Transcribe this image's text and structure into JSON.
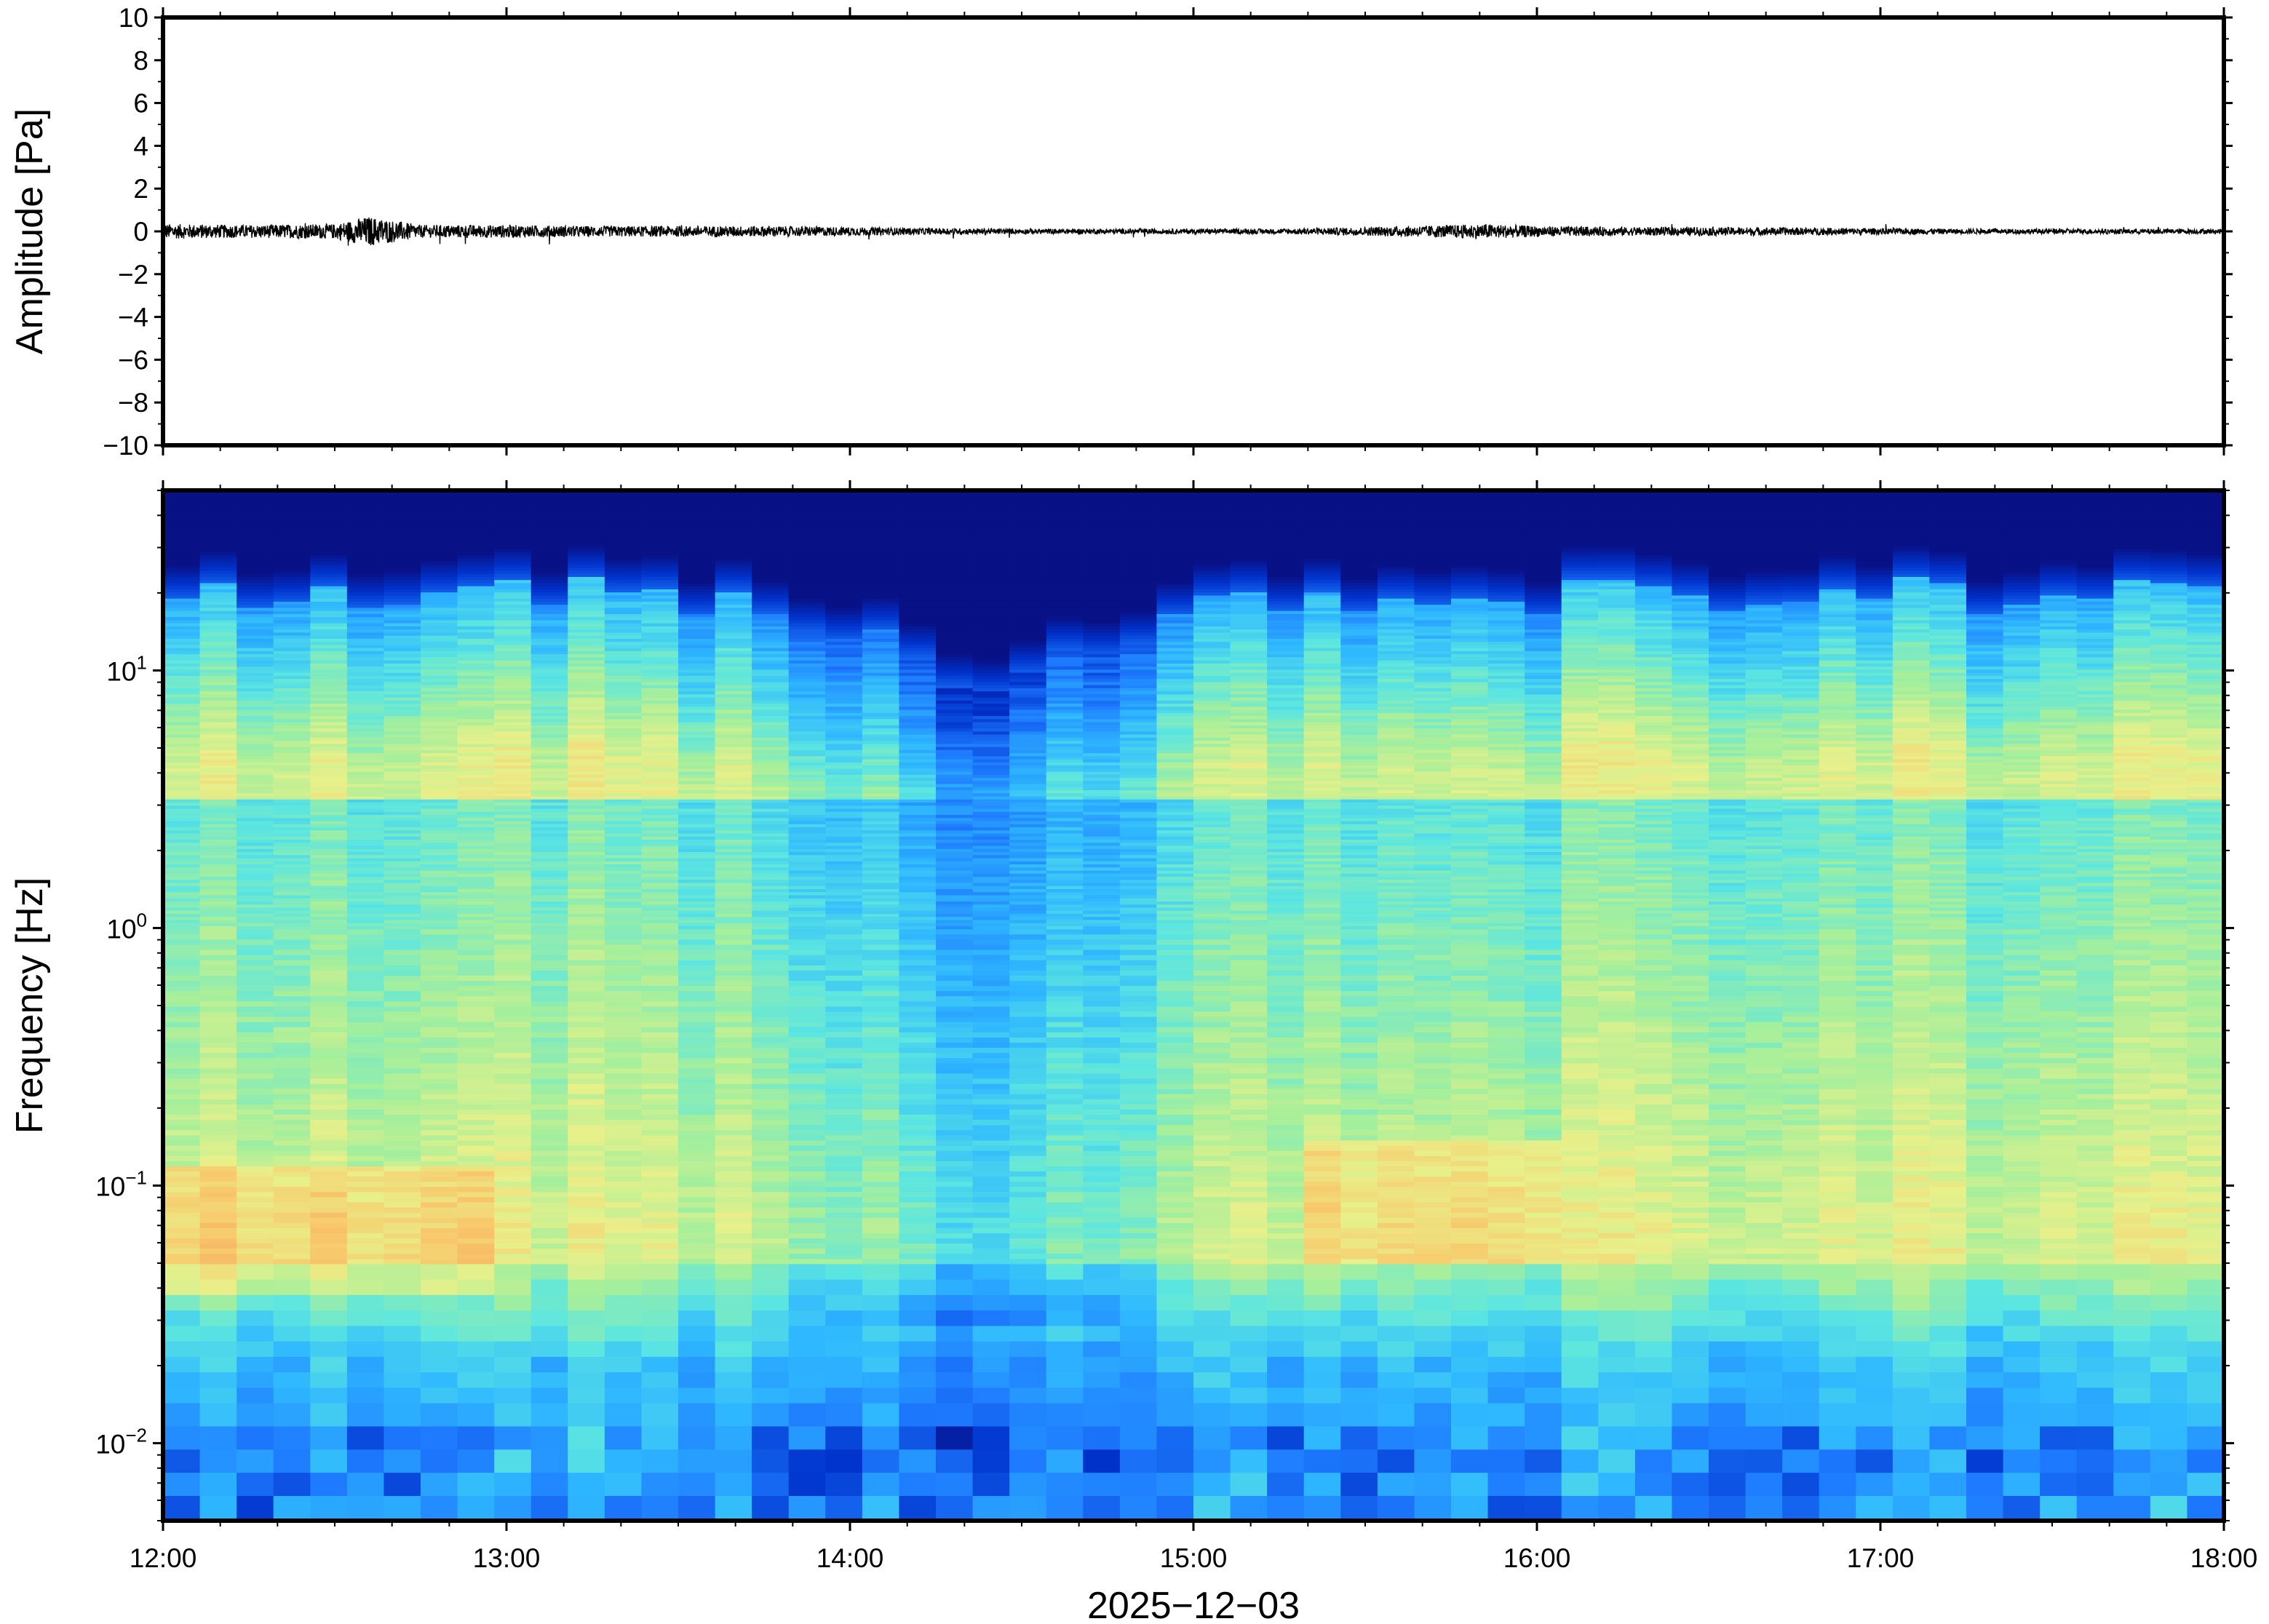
{
  "chart_data": [
    {
      "type": "line",
      "ylabel": "Amplitude [Pa]",
      "ylim": [
        -10,
        10
      ],
      "yticks": [
        {
          "value": 10,
          "label": "10"
        },
        {
          "value": 8,
          "label": "8"
        },
        {
          "value": 6,
          "label": "6"
        },
        {
          "value": 4,
          "label": "4"
        },
        {
          "value": 2,
          "label": "2"
        },
        {
          "value": 0,
          "label": "0"
        },
        {
          "value": -2,
          "label": "−2"
        },
        {
          "value": -4,
          "label": "−4"
        },
        {
          "value": -6,
          "label": "−6"
        },
        {
          "value": -8,
          "label": "−8"
        },
        {
          "value": -10,
          "label": "−10"
        }
      ],
      "xlim": [
        "2025-12-03 12:00",
        "2025-12-03 18:00"
      ],
      "series": [
        {
          "color": "#000000",
          "x_hours": [
            12.0,
            12.25,
            12.5,
            12.6,
            12.75,
            13.0,
            13.25,
            13.5,
            13.75,
            14.0,
            14.25,
            14.5,
            14.75,
            15.0,
            15.25,
            15.5,
            15.75,
            15.85,
            16.0,
            16.25,
            16.5,
            16.75,
            17.0,
            17.25,
            17.5,
            17.75,
            18.0
          ],
          "envelope": [
            0.35,
            0.3,
            0.35,
            0.7,
            0.3,
            0.3,
            0.25,
            0.25,
            0.25,
            0.2,
            0.15,
            0.12,
            0.12,
            0.12,
            0.12,
            0.2,
            0.3,
            0.35,
            0.25,
            0.2,
            0.2,
            0.18,
            0.15,
            0.12,
            0.12,
            0.12,
            0.12
          ]
        }
      ]
    },
    {
      "type": "heatmap",
      "ylabel": "Frequency [Hz]",
      "xlabel": "2025−12−03",
      "yscale": "log",
      "ylim": [
        0.005,
        50
      ],
      "yticks": [
        {
          "value": 10,
          "base": "10",
          "exp": "1"
        },
        {
          "value": 1,
          "base": "10",
          "exp": "0"
        },
        {
          "value": 0.1,
          "base": "10",
          "exp": "−1"
        },
        {
          "value": 0.01,
          "base": "10",
          "exp": "−2"
        }
      ],
      "xticks": [
        {
          "value": "12:00",
          "label": "12:00"
        },
        {
          "value": "13:00",
          "label": "13:00"
        },
        {
          "value": "14:00",
          "label": "14:00"
        },
        {
          "value": "15:00",
          "label": "15:00"
        },
        {
          "value": "16:00",
          "label": "16:00"
        },
        {
          "value": "17:00",
          "label": "17:00"
        },
        {
          "value": "18:00",
          "label": "18:00"
        }
      ],
      "colormap": [
        "#0a0a78",
        "#0033cc",
        "#1e7bff",
        "#2fb8ff",
        "#5ce6e0",
        "#a6ef9b",
        "#e8f08a",
        "#f8c96c",
        "#f5a25e"
      ],
      "features": {
        "cutoff_frequency_hz": 20,
        "quiet_period": [
          "14:15",
          "14:35"
        ],
        "energetic_bands": [
          {
            "time": [
              "12:00",
              "13:00"
            ],
            "freq_hz": [
              0.04,
              0.12
            ]
          },
          {
            "time": [
              "15:20",
              "16:05"
            ],
            "freq_hz": [
              0.05,
              0.15
            ]
          }
        ]
      }
    }
  ]
}
